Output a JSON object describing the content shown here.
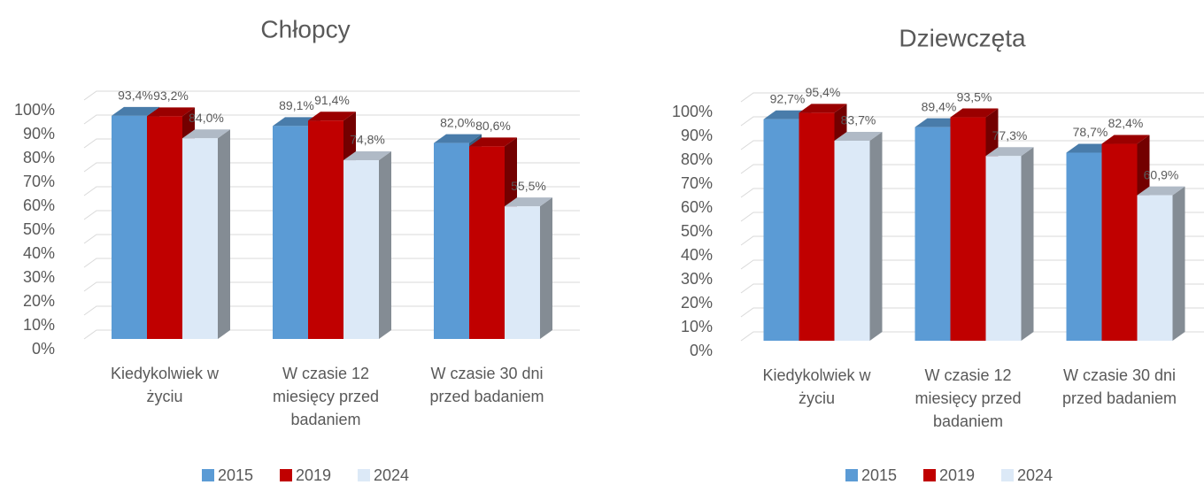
{
  "chart_data": [
    {
      "type": "bar3d",
      "title": "Chłopcy",
      "categories": [
        "Kiedykolwiek w życiu",
        "W czasie 12 miesięcy przed badaniem",
        "W czasie 30 dni przed badaniem"
      ],
      "series": [
        {
          "name": "2015",
          "color": "#5b9bd5",
          "values": [
            93.4,
            89.1,
            82.0
          ],
          "value_labels": [
            "93,4%",
            "89,1%",
            "82,0%"
          ]
        },
        {
          "name": "2019",
          "color": "#c00000",
          "values": [
            93.2,
            91.4,
            80.6
          ],
          "value_labels": [
            "93,2%",
            "91,4%",
            "80,6%"
          ]
        },
        {
          "name": "2024",
          "color": "#dce9f7",
          "values": [
            84.0,
            74.8,
            55.5
          ],
          "value_labels": [
            "84,0%",
            "74,8%",
            "55,5%"
          ]
        }
      ],
      "ylim": [
        0,
        100
      ],
      "yticks": [
        {
          "value": 0,
          "label": "0%"
        },
        {
          "value": 10,
          "label": "10%"
        },
        {
          "value": 20,
          "label": "20%"
        },
        {
          "value": 30,
          "label": "30%"
        },
        {
          "value": 40,
          "label": "40%"
        },
        {
          "value": 50,
          "label": "50%"
        },
        {
          "value": 60,
          "label": "60%"
        },
        {
          "value": 70,
          "label": "70%"
        },
        {
          "value": 80,
          "label": "80%"
        },
        {
          "value": 90,
          "label": "90%"
        },
        {
          "value": 100,
          "label": "100%"
        }
      ],
      "grid": true,
      "legend": "bottom"
    },
    {
      "type": "bar3d",
      "title": "Dziewczęta",
      "categories": [
        "Kiedykolwiek w życiu",
        "W czasie 12 miesięcy przed badaniem",
        "W czasie 30 dni przed badaniem"
      ],
      "series": [
        {
          "name": "2015",
          "color": "#5b9bd5",
          "values": [
            92.7,
            89.4,
            78.7
          ],
          "value_labels": [
            "92,7%",
            "89,4%",
            "78,7%"
          ]
        },
        {
          "name": "2019",
          "color": "#c00000",
          "values": [
            95.4,
            93.5,
            82.4
          ],
          "value_labels": [
            "95,4%",
            "93,5%",
            "82,4%"
          ]
        },
        {
          "name": "2024",
          "color": "#dce9f7",
          "values": [
            83.7,
            77.3,
            60.9
          ],
          "value_labels": [
            "83,7%",
            "77,3%",
            "60,9%"
          ]
        }
      ],
      "ylim": [
        0,
        100
      ],
      "yticks": [
        {
          "value": 0,
          "label": "0%"
        },
        {
          "value": 10,
          "label": "10%"
        },
        {
          "value": 20,
          "label": "20%"
        },
        {
          "value": 30,
          "label": "30%"
        },
        {
          "value": 40,
          "label": "40%"
        },
        {
          "value": 50,
          "label": "50%"
        },
        {
          "value": 60,
          "label": "60%"
        },
        {
          "value": 70,
          "label": "70%"
        },
        {
          "value": 80,
          "label": "80%"
        },
        {
          "value": 90,
          "label": "90%"
        },
        {
          "value": 100,
          "label": "100%"
        }
      ],
      "grid": true,
      "legend": "bottom"
    }
  ]
}
